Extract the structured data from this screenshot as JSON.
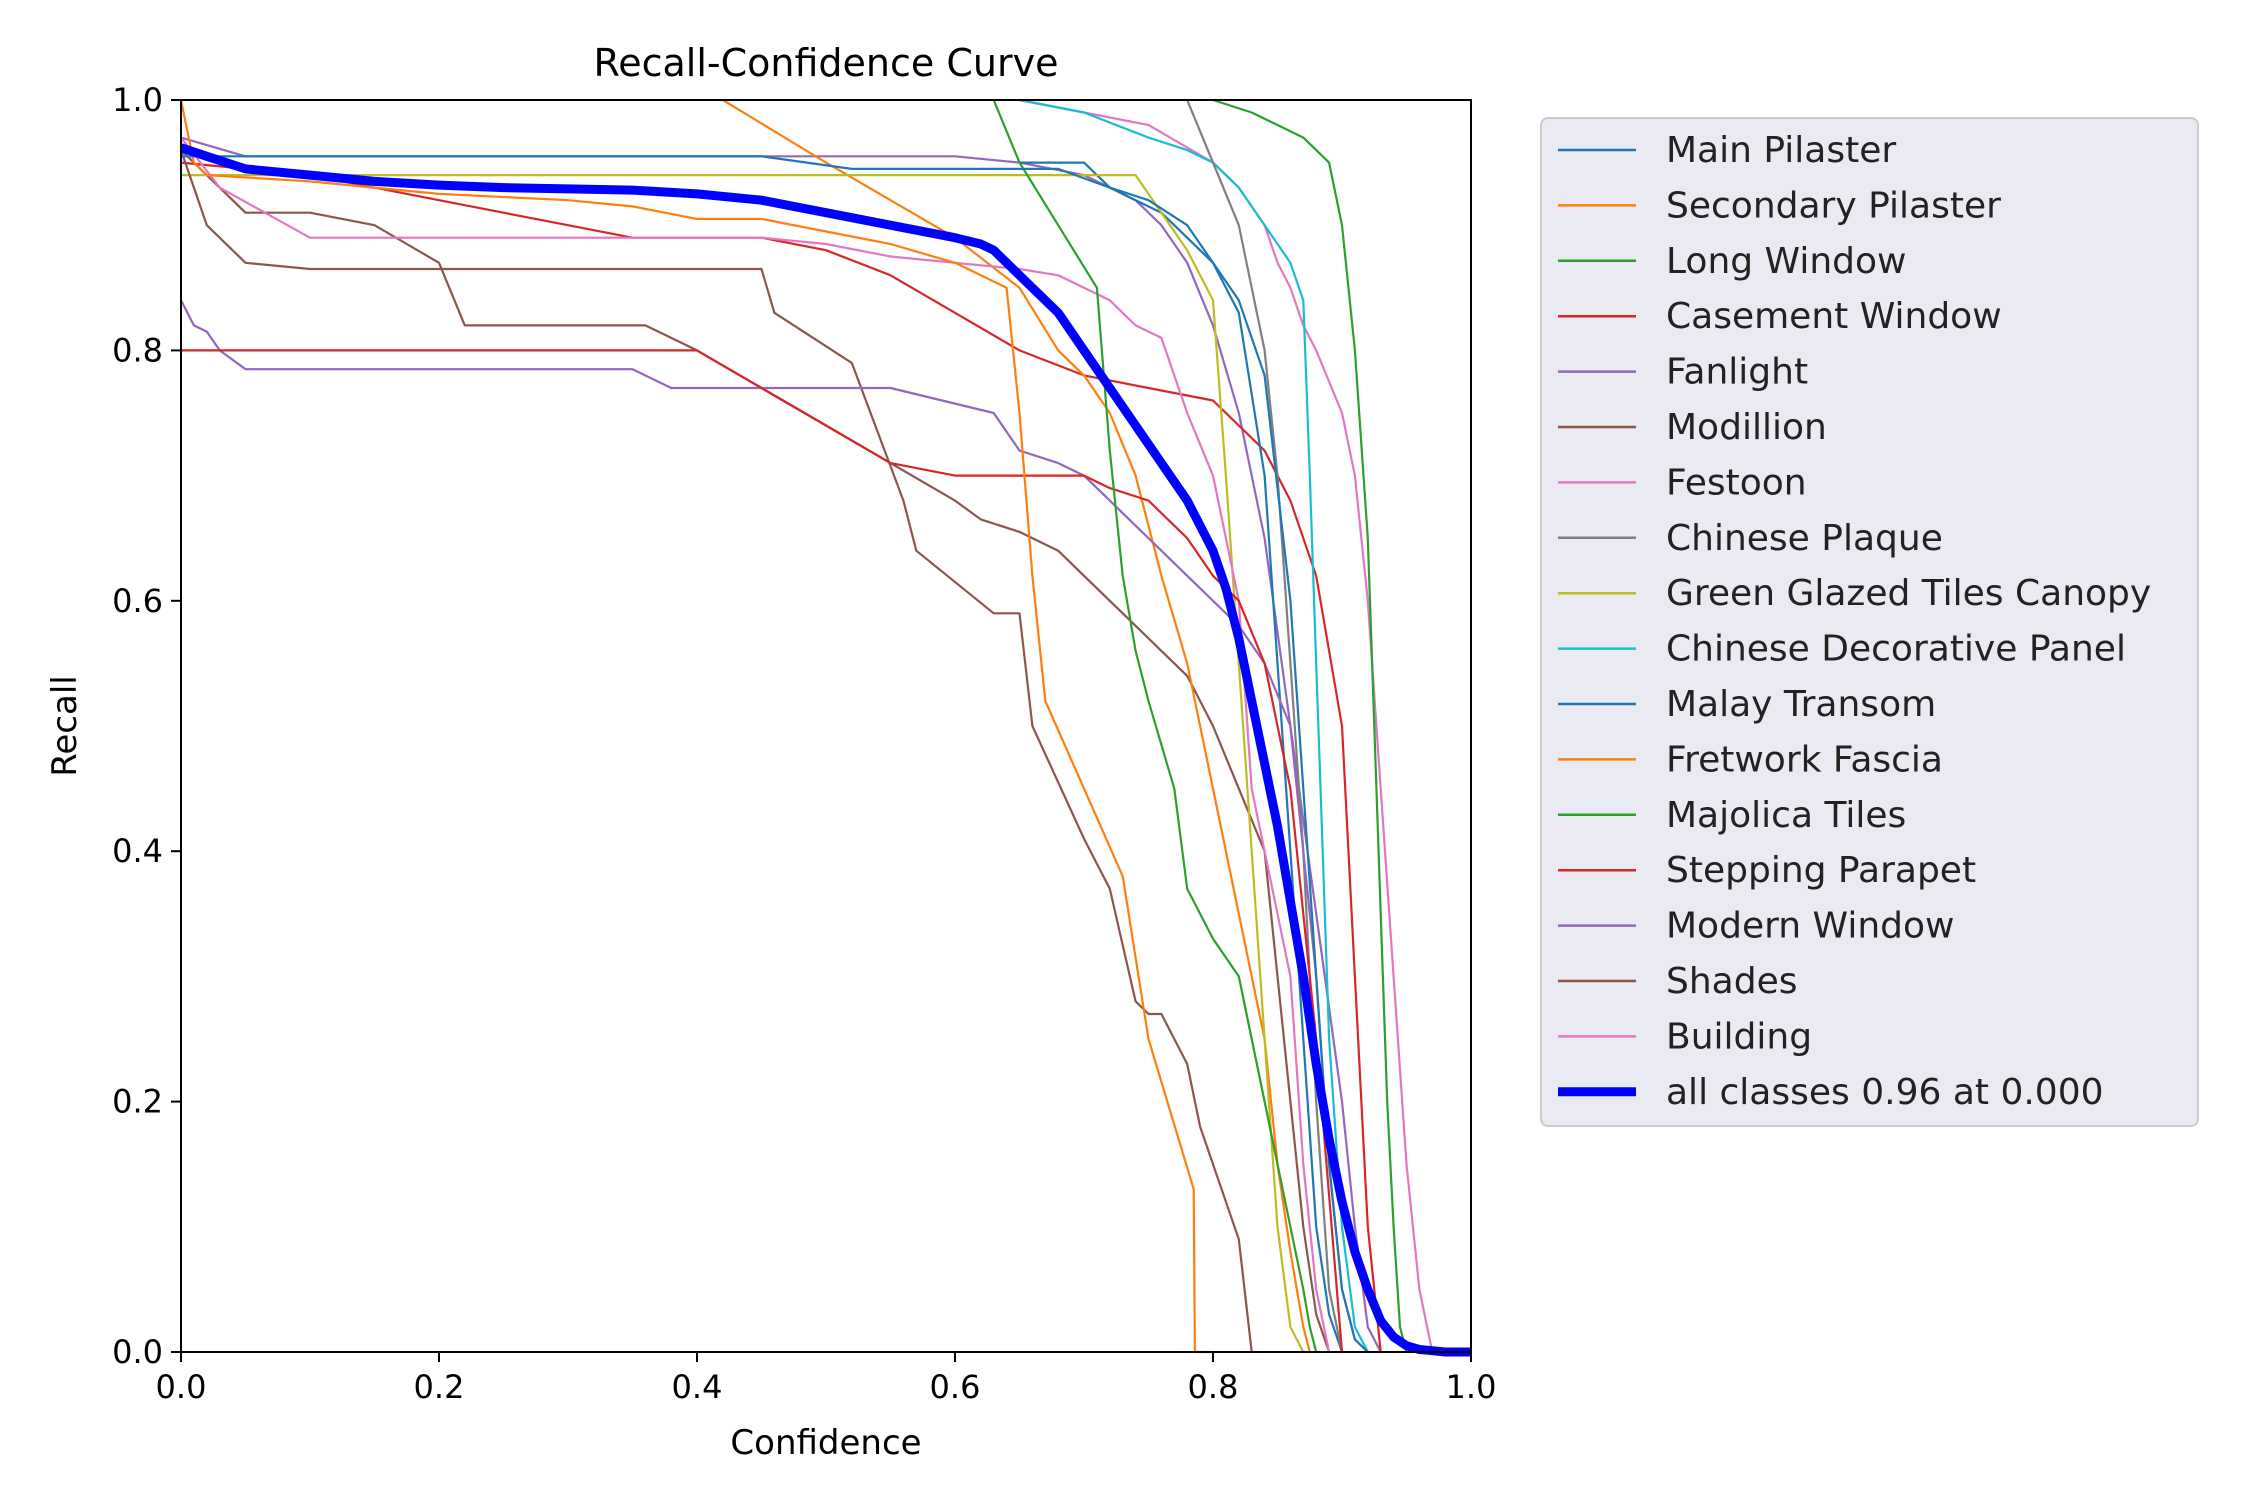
{
  "chart_data": {
    "type": "line",
    "title": "Recall-Confidence Curve",
    "xlabel": "Confidence",
    "ylabel": "Recall",
    "xlim": [
      0,
      1
    ],
    "ylim": [
      0,
      1
    ],
    "xticks": [
      "0.0",
      "0.2",
      "0.4",
      "0.6",
      "0.8",
      "1.0"
    ],
    "yticks": [
      "0.0",
      "0.2",
      "0.4",
      "0.6",
      "0.8",
      "1.0"
    ],
    "grid": false,
    "legend_position": "outside-right",
    "series": [
      {
        "name": "Main Pilaster",
        "color": "#1f77b4",
        "x": [
          0,
          0.45,
          0.52,
          0.68,
          0.72,
          0.75,
          0.78,
          0.8,
          0.82,
          0.84,
          0.86,
          0.87,
          0.88,
          0.89,
          0.9,
          0.91,
          0.92
        ],
        "y": [
          0.955,
          0.955,
          0.945,
          0.945,
          0.93,
          0.92,
          0.9,
          0.87,
          0.84,
          0.78,
          0.6,
          0.45,
          0.3,
          0.15,
          0.05,
          0.01,
          0
        ]
      },
      {
        "name": "Secondary Pilaster",
        "color": "#ff7f0e",
        "x": [
          0,
          0.005,
          0.01,
          0.02,
          0.1,
          0.2,
          0.3,
          0.35,
          0.4,
          0.45,
          0.5,
          0.55,
          0.6,
          0.64,
          0.65,
          0.66,
          0.67,
          0.7,
          0.73,
          0.75,
          0.785,
          0.786,
          0.8
        ],
        "y": [
          1.0,
          0.975,
          0.95,
          0.94,
          0.935,
          0.925,
          0.92,
          0.915,
          0.905,
          0.905,
          0.895,
          0.885,
          0.87,
          0.85,
          0.75,
          0.62,
          0.52,
          0.45,
          0.38,
          0.25,
          0.13,
          0,
          0
        ]
      },
      {
        "name": "Long Window",
        "color": "#2ca02c",
        "x": [
          0.63,
          0.65,
          0.68,
          0.71,
          0.72,
          0.73,
          0.74,
          0.75,
          0.77,
          0.78,
          0.8,
          0.82,
          0.83,
          0.84,
          0.85,
          0.86,
          0.87,
          0.875,
          0.88
        ],
        "y": [
          1.0,
          0.95,
          0.9,
          0.85,
          0.72,
          0.62,
          0.56,
          0.52,
          0.45,
          0.37,
          0.33,
          0.3,
          0.25,
          0.2,
          0.15,
          0.1,
          0.05,
          0.02,
          0
        ]
      },
      {
        "name": "Casement Window",
        "color": "#d62728",
        "x": [
          0,
          0.4,
          0.45,
          0.5,
          0.55,
          0.6,
          0.65,
          0.7,
          0.72,
          0.75,
          0.78,
          0.8,
          0.82,
          0.84,
          0.86,
          0.87,
          0.88,
          0.9
        ],
        "y": [
          0.8,
          0.8,
          0.77,
          0.74,
          0.71,
          0.7,
          0.7,
          0.7,
          0.69,
          0.68,
          0.65,
          0.62,
          0.6,
          0.55,
          0.45,
          0.35,
          0.25,
          0
        ]
      },
      {
        "name": "Fanlight",
        "color": "#9467bd",
        "x": [
          0,
          0.01,
          0.02,
          0.03,
          0.05,
          0.1,
          0.2,
          0.35,
          0.38,
          0.45,
          0.55,
          0.63,
          0.65,
          0.68,
          0.7,
          0.72,
          0.74,
          0.76,
          0.78,
          0.8,
          0.82,
          0.84,
          0.86,
          0.88,
          0.89,
          0.9,
          0.91,
          0.92
        ],
        "y": [
          0.84,
          0.82,
          0.815,
          0.8,
          0.785,
          0.785,
          0.785,
          0.785,
          0.77,
          0.77,
          0.77,
          0.75,
          0.72,
          0.71,
          0.7,
          0.68,
          0.66,
          0.64,
          0.62,
          0.6,
          0.58,
          0.55,
          0.5,
          0.3,
          0.15,
          0.05,
          0.01,
          0
        ]
      },
      {
        "name": "Modillion",
        "color": "#8c564b",
        "x": [
          0,
          0.01,
          0.02,
          0.05,
          0.1,
          0.15,
          0.2,
          0.25,
          0.3,
          0.35,
          0.4,
          0.45,
          0.46,
          0.52,
          0.56,
          0.57,
          0.63,
          0.65,
          0.66,
          0.7,
          0.72,
          0.74,
          0.75,
          0.76,
          0.78,
          0.79,
          0.8,
          0.82,
          0.83
        ],
        "y": [
          0.96,
          0.93,
          0.9,
          0.87,
          0.865,
          0.865,
          0.865,
          0.865,
          0.865,
          0.865,
          0.865,
          0.865,
          0.83,
          0.79,
          0.68,
          0.64,
          0.59,
          0.59,
          0.5,
          0.41,
          0.37,
          0.28,
          0.27,
          0.27,
          0.23,
          0.18,
          0.15,
          0.09,
          0
        ]
      },
      {
        "name": "Festoon",
        "color": "#e377c2",
        "x": [
          0,
          0.03,
          0.1,
          0.15,
          0.3,
          0.45,
          0.5,
          0.55,
          0.6,
          0.65,
          0.68,
          0.7,
          0.72,
          0.74,
          0.76,
          0.78,
          0.8,
          0.82,
          0.83,
          0.84,
          0.85,
          0.86,
          0.87,
          0.88,
          0.89
        ],
        "y": [
          0.97,
          0.93,
          0.89,
          0.89,
          0.89,
          0.89,
          0.885,
          0.875,
          0.87,
          0.865,
          0.86,
          0.85,
          0.84,
          0.82,
          0.81,
          0.75,
          0.7,
          0.6,
          0.45,
          0.4,
          0.35,
          0.3,
          0.15,
          0.05,
          0
        ]
      },
      {
        "name": "Chinese Plaque",
        "color": "#7f7f7f",
        "x": [
          0.78,
          0.8,
          0.82,
          0.83,
          0.84,
          0.85,
          0.86,
          0.87,
          0.88,
          0.89,
          0.9
        ],
        "y": [
          1.0,
          0.95,
          0.9,
          0.85,
          0.8,
          0.7,
          0.55,
          0.4,
          0.2,
          0.05,
          0
        ]
      },
      {
        "name": "Green Glazed Tiles Canopy",
        "color": "#bcbd22",
        "x": [
          0,
          0.74,
          0.76,
          0.78,
          0.8,
          0.81,
          0.82,
          0.83,
          0.84,
          0.85,
          0.86,
          0.87
        ],
        "y": [
          0.94,
          0.94,
          0.91,
          0.88,
          0.84,
          0.7,
          0.55,
          0.4,
          0.25,
          0.1,
          0.02,
          0
        ]
      },
      {
        "name": "Chinese Decorative Panel",
        "color": "#17becf",
        "x": [
          0.65,
          0.7,
          0.75,
          0.78,
          0.8,
          0.82,
          0.84,
          0.86,
          0.87,
          0.875,
          0.88,
          0.885,
          0.89,
          0.9,
          0.91,
          0.92
        ],
        "y": [
          1.0,
          0.99,
          0.97,
          0.96,
          0.95,
          0.93,
          0.9,
          0.87,
          0.84,
          0.7,
          0.55,
          0.4,
          0.25,
          0.1,
          0.02,
          0
        ]
      },
      {
        "name": "Malay Transom",
        "color": "#1f77b4",
        "x": [
          0.65,
          0.7,
          0.72,
          0.74,
          0.76,
          0.78,
          0.8,
          0.82,
          0.84,
          0.85,
          0.86,
          0.87,
          0.88,
          0.89,
          0.9
        ],
        "y": [
          0.95,
          0.95,
          0.93,
          0.92,
          0.91,
          0.89,
          0.87,
          0.83,
          0.7,
          0.55,
          0.4,
          0.25,
          0.1,
          0.03,
          0
        ]
      },
      {
        "name": "Fretwork Fascia",
        "color": "#ff7f0e",
        "x": [
          0.42,
          0.5,
          0.55,
          0.6,
          0.65,
          0.68,
          0.7,
          0.72,
          0.74,
          0.76,
          0.78,
          0.8,
          0.82,
          0.84,
          0.85,
          0.86,
          0.87,
          0.875
        ],
        "y": [
          1.0,
          0.95,
          0.92,
          0.89,
          0.85,
          0.8,
          0.78,
          0.75,
          0.7,
          0.62,
          0.55,
          0.45,
          0.35,
          0.25,
          0.15,
          0.08,
          0.02,
          0
        ]
      },
      {
        "name": "Majolica Tiles",
        "color": "#2ca02c",
        "x": [
          0.8,
          0.83,
          0.85,
          0.87,
          0.89,
          0.9,
          0.91,
          0.92,
          0.925,
          0.93,
          0.935,
          0.94,
          0.945,
          0.95
        ],
        "y": [
          1.0,
          0.99,
          0.98,
          0.97,
          0.95,
          0.9,
          0.8,
          0.65,
          0.5,
          0.35,
          0.2,
          0.1,
          0.02,
          0
        ]
      },
      {
        "name": "Stepping Parapet",
        "color": "#d62728",
        "x": [
          0,
          0.1,
          0.15,
          0.2,
          0.25,
          0.3,
          0.35,
          0.4,
          0.45,
          0.5,
          0.55,
          0.6,
          0.65,
          0.7,
          0.75,
          0.8,
          0.82,
          0.84,
          0.86,
          0.88,
          0.9,
          0.91,
          0.92,
          0.93
        ],
        "y": [
          0.95,
          0.94,
          0.93,
          0.92,
          0.91,
          0.9,
          0.89,
          0.89,
          0.89,
          0.88,
          0.86,
          0.83,
          0.8,
          0.78,
          0.77,
          0.76,
          0.74,
          0.72,
          0.68,
          0.62,
          0.5,
          0.3,
          0.1,
          0
        ]
      },
      {
        "name": "Modern Window",
        "color": "#9467bd",
        "x": [
          0,
          0.05,
          0.2,
          0.4,
          0.6,
          0.65,
          0.7,
          0.72,
          0.74,
          0.76,
          0.78,
          0.8,
          0.82,
          0.84,
          0.86,
          0.88,
          0.9,
          0.91,
          0.92,
          0.93
        ],
        "y": [
          0.97,
          0.955,
          0.955,
          0.955,
          0.955,
          0.95,
          0.94,
          0.93,
          0.92,
          0.9,
          0.87,
          0.82,
          0.75,
          0.65,
          0.5,
          0.35,
          0.2,
          0.1,
          0.02,
          0
        ]
      },
      {
        "name": "Shades",
        "color": "#8c564b",
        "x": [
          0,
          0.05,
          0.1,
          0.15,
          0.2,
          0.22,
          0.3,
          0.36,
          0.4,
          0.45,
          0.5,
          0.55,
          0.6,
          0.62,
          0.65,
          0.68,
          0.7,
          0.72,
          0.74,
          0.76,
          0.78,
          0.8,
          0.82,
          0.84,
          0.85,
          0.86,
          0.87,
          0.88,
          0.89
        ],
        "y": [
          0.96,
          0.91,
          0.91,
          0.9,
          0.87,
          0.82,
          0.82,
          0.82,
          0.8,
          0.77,
          0.74,
          0.71,
          0.68,
          0.665,
          0.655,
          0.64,
          0.62,
          0.6,
          0.58,
          0.56,
          0.54,
          0.5,
          0.45,
          0.4,
          0.3,
          0.2,
          0.1,
          0.03,
          0
        ]
      },
      {
        "name": "Building",
        "color": "#e377c2",
        "x": [
          0.65,
          0.7,
          0.75,
          0.8,
          0.82,
          0.84,
          0.85,
          0.86,
          0.87,
          0.88,
          0.9,
          0.91,
          0.92,
          0.93,
          0.94,
          0.95,
          0.96,
          0.97
        ],
        "y": [
          1.0,
          0.99,
          0.98,
          0.95,
          0.93,
          0.9,
          0.87,
          0.85,
          0.82,
          0.8,
          0.75,
          0.7,
          0.6,
          0.45,
          0.3,
          0.15,
          0.05,
          0
        ]
      },
      {
        "name": "all classes 0.96 at 0.000",
        "color": "#0000ff",
        "thick": true,
        "x": [
          0,
          0.02,
          0.05,
          0.1,
          0.15,
          0.2,
          0.25,
          0.3,
          0.35,
          0.4,
          0.45,
          0.5,
          0.55,
          0.6,
          0.62,
          0.63,
          0.65,
          0.68,
          0.7,
          0.72,
          0.74,
          0.76,
          0.78,
          0.8,
          0.81,
          0.82,
          0.83,
          0.84,
          0.85,
          0.86,
          0.87,
          0.88,
          0.89,
          0.9,
          0.91,
          0.92,
          0.93,
          0.94,
          0.95,
          0.96,
          0.97,
          0.98,
          1.0
        ],
        "y": [
          0.962,
          0.955,
          0.945,
          0.94,
          0.935,
          0.932,
          0.93,
          0.929,
          0.928,
          0.925,
          0.92,
          0.91,
          0.9,
          0.89,
          0.885,
          0.88,
          0.86,
          0.83,
          0.8,
          0.77,
          0.74,
          0.71,
          0.68,
          0.64,
          0.61,
          0.57,
          0.52,
          0.47,
          0.42,
          0.36,
          0.3,
          0.23,
          0.17,
          0.12,
          0.08,
          0.05,
          0.025,
          0.012,
          0.005,
          0.002,
          0.001,
          0,
          0
        ]
      }
    ]
  }
}
